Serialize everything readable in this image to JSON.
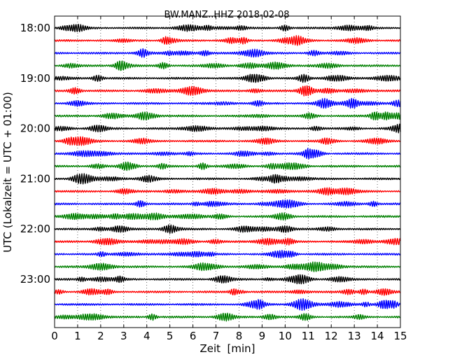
{
  "chart_data": {
    "type": "line",
    "title": "BW.MANZ..HHZ 2018-02-08",
    "xlabel": "Zeit  [min]",
    "ylabel": "UTC (Lokalzeit = UTC + 01:00)",
    "xlim": [
      0,
      15
    ],
    "x_ticks": [
      "0",
      "1",
      "2",
      "3",
      "4",
      "5",
      "6",
      "7",
      "8",
      "9",
      "10",
      "11",
      "12",
      "13",
      "14",
      "15"
    ],
    "y_tick_labels": [
      "18:00",
      "19:00",
      "20:00",
      "21:00",
      "22:00",
      "23:00"
    ],
    "grid": "vertical dotted lines at each minute",
    "trace_colors": [
      "#000000",
      "#ff0000",
      "#0000ff",
      "#008000"
    ],
    "traces": [
      {
        "start": "18:00",
        "color": "#000000"
      },
      {
        "start": "18:15",
        "color": "#ff0000"
      },
      {
        "start": "18:30",
        "color": "#0000ff"
      },
      {
        "start": "18:45",
        "color": "#008000"
      },
      {
        "start": "19:00",
        "color": "#000000"
      },
      {
        "start": "19:15",
        "color": "#ff0000"
      },
      {
        "start": "19:30",
        "color": "#0000ff"
      },
      {
        "start": "19:45",
        "color": "#008000"
      },
      {
        "start": "20:00",
        "color": "#000000"
      },
      {
        "start": "20:15",
        "color": "#ff0000"
      },
      {
        "start": "20:30",
        "color": "#0000ff"
      },
      {
        "start": "20:45",
        "color": "#008000"
      },
      {
        "start": "21:00",
        "color": "#000000"
      },
      {
        "start": "21:15",
        "color": "#ff0000"
      },
      {
        "start": "21:30",
        "color": "#0000ff"
      },
      {
        "start": "21:45",
        "color": "#008000"
      },
      {
        "start": "22:00",
        "color": "#000000"
      },
      {
        "start": "22:15",
        "color": "#ff0000"
      },
      {
        "start": "22:30",
        "color": "#0000ff"
      },
      {
        "start": "22:45",
        "color": "#008000"
      },
      {
        "start": "23:00",
        "color": "#000000"
      },
      {
        "start": "23:15",
        "color": "#ff0000"
      },
      {
        "start": "23:30",
        "color": "#0000ff"
      },
      {
        "start": "23:45",
        "color": "#008000"
      }
    ]
  }
}
